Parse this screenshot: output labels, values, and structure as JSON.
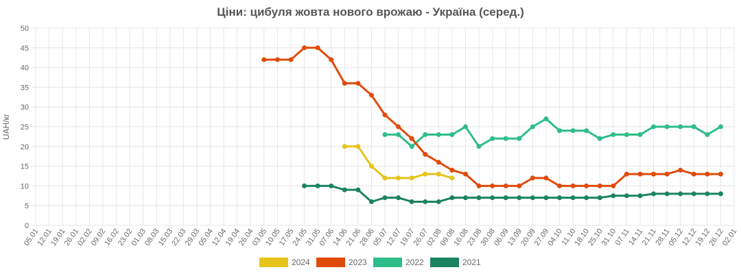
{
  "chart_data": {
    "type": "line",
    "title": "Ціни: цибуля жовта нового врожаю - Україна (серед.)",
    "xlabel": "",
    "ylabel": "UAH/кг",
    "ylim": [
      0,
      50
    ],
    "y_ticks": [
      0,
      5,
      10,
      15,
      20,
      25,
      30,
      35,
      40,
      45,
      50
    ],
    "grid": true,
    "legend_position": "bottom",
    "categories": [
      "05.01",
      "12.01",
      "19.01",
      "26.01",
      "02.02",
      "09.02",
      "16.02",
      "23.02",
      "01.03",
      "08.03",
      "15.03",
      "22.03",
      "29.03",
      "05.04",
      "12.04",
      "19.04",
      "26.04",
      "03.05",
      "10.05",
      "17.05",
      "24.05",
      "31.05",
      "07.06",
      "14.06",
      "21.06",
      "28.06",
      "05.07",
      "12.07",
      "19.07",
      "26.07",
      "02.08",
      "09.08",
      "16.08",
      "23.08",
      "30.08",
      "06.09",
      "13.09",
      "20.09",
      "27.09",
      "04.10",
      "11.10",
      "18.10",
      "25.10",
      "31.10",
      "07.11",
      "14.11",
      "21.11",
      "28.11",
      "05.12",
      "12.12",
      "19.12",
      "26.12",
      "02.01"
    ],
    "series": [
      {
        "name": "2024",
        "color": "#e6c419",
        "values": [
          null,
          null,
          null,
          null,
          null,
          null,
          null,
          null,
          null,
          null,
          null,
          null,
          null,
          null,
          null,
          null,
          null,
          null,
          null,
          null,
          null,
          null,
          null,
          20,
          20,
          15,
          12,
          12,
          12,
          13,
          13,
          12,
          null,
          null,
          null,
          null,
          null,
          null,
          null,
          null,
          null,
          null,
          null,
          null,
          null,
          null,
          null,
          null,
          null,
          null,
          null,
          null,
          null
        ]
      },
      {
        "name": "2023",
        "color": "#e04b0a",
        "values": [
          null,
          null,
          null,
          null,
          null,
          null,
          null,
          null,
          null,
          null,
          null,
          null,
          null,
          null,
          null,
          null,
          null,
          42,
          42,
          42,
          45,
          45,
          42,
          36,
          36,
          33,
          28,
          25,
          22,
          18,
          16,
          14,
          13,
          10,
          10,
          10,
          10,
          12,
          12,
          10,
          10,
          10,
          10,
          10,
          13,
          13,
          13,
          13,
          14,
          13,
          13,
          13,
          null
        ]
      },
      {
        "name": "2022",
        "color": "#2ebd88",
        "values": [
          null,
          null,
          null,
          null,
          null,
          null,
          null,
          null,
          null,
          null,
          null,
          null,
          null,
          null,
          null,
          null,
          null,
          null,
          null,
          null,
          null,
          null,
          null,
          null,
          null,
          null,
          23,
          23,
          20,
          23,
          23,
          23,
          25,
          20,
          22,
          22,
          22,
          25,
          27,
          24,
          24,
          24,
          22,
          23,
          23,
          23,
          25,
          25,
          25,
          25,
          23,
          25,
          null
        ]
      },
      {
        "name": "2021",
        "color": "#1b8361",
        "values": [
          null,
          null,
          null,
          null,
          null,
          null,
          null,
          null,
          null,
          null,
          null,
          null,
          null,
          null,
          null,
          null,
          null,
          null,
          null,
          null,
          10,
          10,
          10,
          9,
          9,
          6,
          7,
          7,
          6,
          6,
          6,
          7,
          7,
          7,
          7,
          7,
          7,
          7,
          7,
          7,
          7,
          7,
          7,
          7.5,
          7.5,
          7.5,
          8,
          8,
          8,
          8,
          8,
          8,
          null
        ]
      }
    ]
  }
}
